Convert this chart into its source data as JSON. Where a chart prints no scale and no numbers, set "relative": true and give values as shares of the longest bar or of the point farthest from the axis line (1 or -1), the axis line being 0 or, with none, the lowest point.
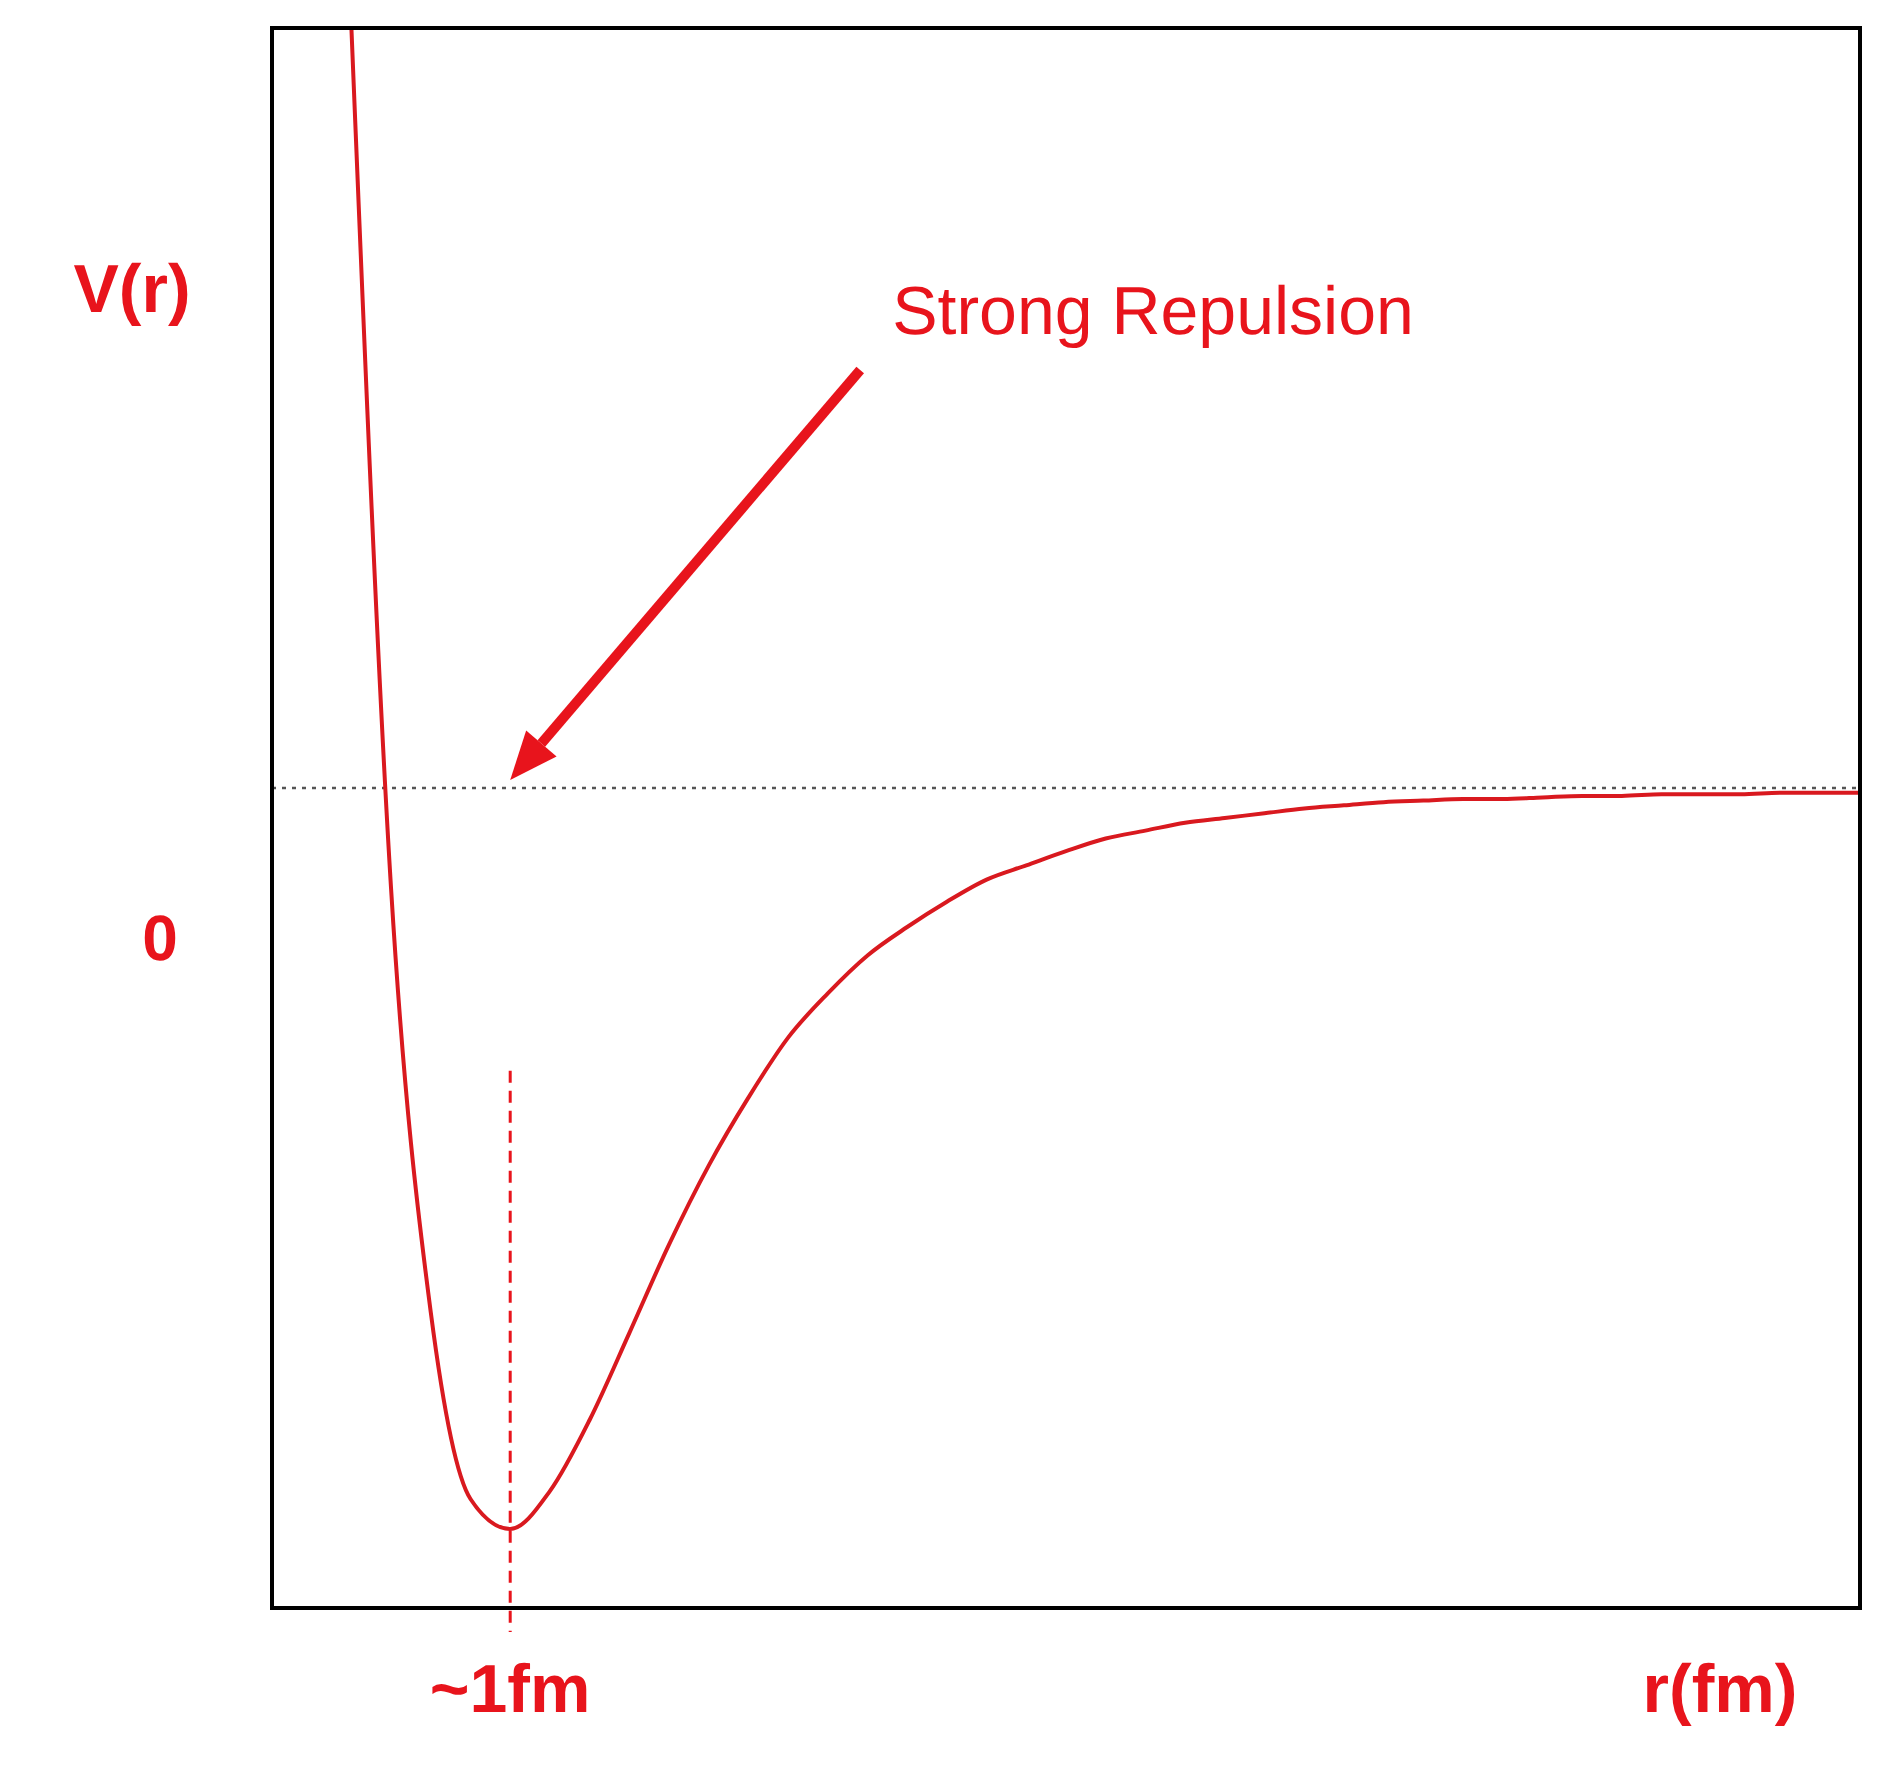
{
  "chart_data": {
    "type": "line",
    "relative": true,
    "xlabel": "r(fm)",
    "ylabel": "V(r)",
    "categories": [
      null,
      null,
      null,
      null,
      null,
      null,
      null,
      null,
      null,
      null,
      null,
      null,
      null,
      null,
      null,
      null,
      null,
      null,
      null,
      null,
      null,
      null,
      null,
      null,
      null,
      null,
      null,
      null,
      null,
      null,
      null,
      null,
      null,
      null,
      null,
      null,
      null,
      null,
      null,
      null,
      null
    ],
    "series": [
      {
        "color": "#d9191f",
        "values": [
          null,
          null,
          1.0,
          0.455,
          0.187,
          0.069,
          0.05,
          0.074,
          0.119,
          0.174,
          0.23,
          0.28,
          0.323,
          0.361,
          0.389,
          0.413,
          0.431,
          0.447,
          0.461,
          0.47,
          0.479,
          0.487,
          0.492,
          0.497,
          0.5,
          0.503,
          0.506,
          0.508,
          0.51,
          0.511,
          0.512,
          0.512,
          0.513,
          0.514,
          0.514,
          0.515,
          0.515,
          0.515,
          0.516,
          0.516,
          0.516
        ]
      }
    ],
    "grid": false,
    "marker": "none",
    "line_style": "solid",
    "ref_lines": [
      {
        "axis": "y",
        "value": 0.519,
        "color": "#555555",
        "line_style": "dotted"
      }
    ],
    "annotations": [
      "Strong Repulsion",
      "0",
      "~1fm"
    ]
  }
}
